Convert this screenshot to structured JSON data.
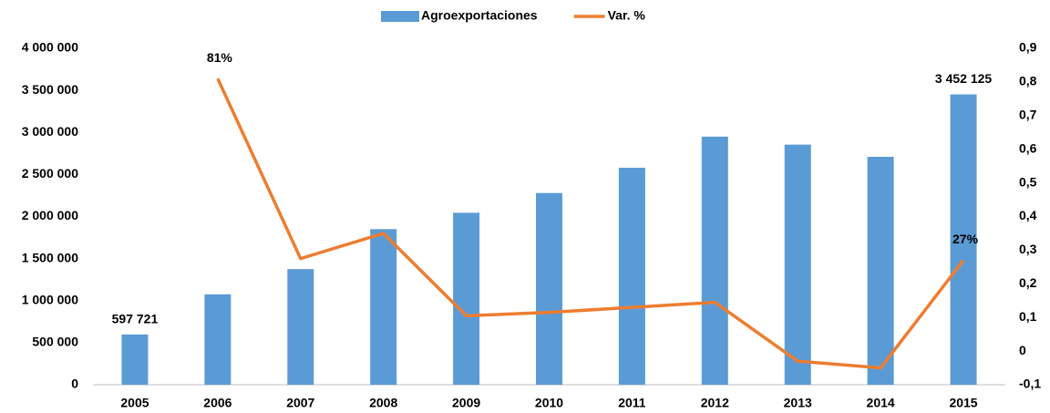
{
  "chart_data": {
    "type": "bar",
    "categories": [
      "2005",
      "2006",
      "2007",
      "2008",
      "2009",
      "2010",
      "2011",
      "2012",
      "2013",
      "2014",
      "2015"
    ],
    "series": [
      {
        "name": "Agroexportaciones",
        "type": "bar",
        "color": "#5b9bd5",
        "values": [
          597721,
          1075000,
          1375000,
          1850000,
          2045000,
          2280000,
          2580000,
          2950000,
          2855000,
          2710000,
          3452125
        ],
        "value_labels": [
          "597 721",
          null,
          null,
          null,
          null,
          null,
          null,
          null,
          null,
          null,
          "3 452 125"
        ]
      },
      {
        "name": "Var. %",
        "type": "line",
        "axis": "y2",
        "color": "#ed7d31",
        "values": [
          null,
          0.81,
          0.275,
          0.35,
          0.105,
          0.115,
          0.13,
          0.145,
          -0.03,
          -0.05,
          0.27
        ],
        "value_labels": [
          null,
          "81%",
          null,
          null,
          null,
          null,
          null,
          null,
          null,
          null,
          "27%"
        ]
      }
    ],
    "ylim": [
      0,
      4000000
    ],
    "yticks": [
      0,
      {
        "value": 500000,
        "label": "500 000"
      },
      {
        "value": 1000000,
        "label": "1 000 000"
      },
      {
        "value": 1500000,
        "label": "1 500 000"
      },
      {
        "value": 2000000,
        "label": "2 000 000"
      },
      {
        "value": 2500000,
        "label": "2 500 000"
      },
      {
        "value": 3000000,
        "label": "3 000 000"
      },
      {
        "value": 3500000,
        "label": "3 500 000"
      },
      {
        "value": 4000000,
        "label": "4 000 000"
      }
    ],
    "y2lim": [
      -0.1,
      0.9
    ],
    "y2ticks": [
      {
        "value": -0.1,
        "label": "-0,1"
      },
      0,
      {
        "value": 0.1,
        "label": "0,1"
      },
      {
        "value": 0.2,
        "label": "0,2"
      },
      {
        "value": 0.3,
        "label": "0,3"
      },
      {
        "value": 0.4,
        "label": "0,4"
      },
      {
        "value": 0.5,
        "label": "0,5"
      },
      {
        "value": 0.6,
        "label": "0,6"
      },
      {
        "value": 0.7,
        "label": "0,7"
      },
      {
        "value": 0.8,
        "label": "0,8"
      },
      {
        "value": 0.9,
        "label": "0,9"
      }
    ],
    "legend": "top",
    "grid": false
  }
}
